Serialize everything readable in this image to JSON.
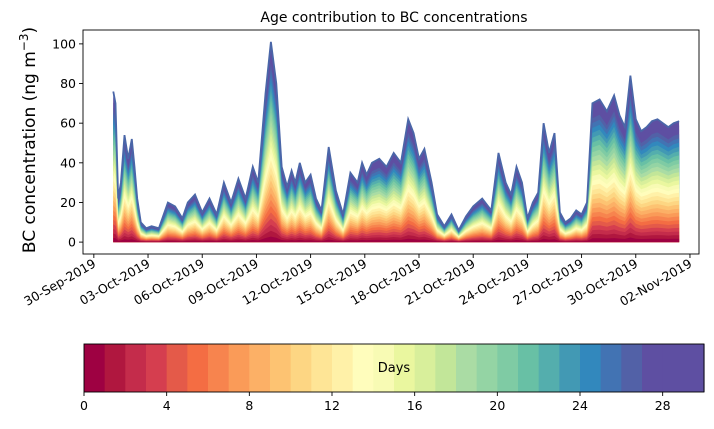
{
  "chart_data": {
    "type": "area",
    "stacked": true,
    "title": "Age contribution to BC concentrations",
    "ylabel_main": "BC concentration (ng m",
    "ylabel_sup": "−3",
    "ylabel_close": ")",
    "xlabel": "",
    "ylim": [
      -6,
      107
    ],
    "xlim": [
      -0.6,
      33.5
    ],
    "x_origin_date": "30-Sep-2019",
    "y_ticks": [
      0,
      20,
      40,
      60,
      80,
      100
    ],
    "x_ticks": [
      {
        "day": 0,
        "label": "30-Sep-2019"
      },
      {
        "day": 3,
        "label": "03-Oct-2019"
      },
      {
        "day": 6,
        "label": "06-Oct-2019"
      },
      {
        "day": 9,
        "label": "09-Oct-2019"
      },
      {
        "day": 12,
        "label": "12-Oct-2019"
      },
      {
        "day": 15,
        "label": "15-Oct-2019"
      },
      {
        "day": 18,
        "label": "18-Oct-2019"
      },
      {
        "day": 21,
        "label": "21-Oct-2019"
      },
      {
        "day": 24,
        "label": "24-Oct-2019"
      },
      {
        "day": 27,
        "label": "27-Oct-2019"
      },
      {
        "day": 30,
        "label": "30-Oct-2019"
      },
      {
        "day": 33,
        "label": "02-Nov-2019"
      }
    ],
    "time_days": [
      1.08,
      1.2,
      1.35,
      1.5,
      1.7,
      1.9,
      2.1,
      2.25,
      2.4,
      2.6,
      2.9,
      3.2,
      3.6,
      4.1,
      4.5,
      4.9,
      5.2,
      5.6,
      6.0,
      6.4,
      6.8,
      7.2,
      7.6,
      8.0,
      8.4,
      8.8,
      9.1,
      9.5,
      9.8,
      10.1,
      10.4,
      10.7,
      10.95,
      11.15,
      11.4,
      11.7,
      12.0,
      12.3,
      12.6,
      13.0,
      13.4,
      13.8,
      14.2,
      14.6,
      14.85,
      15.1,
      15.4,
      15.8,
      16.2,
      16.6,
      17.0,
      17.4,
      17.7,
      18.0,
      18.3,
      18.7,
      19.0,
      19.4,
      19.8,
      20.2,
      20.6,
      21.0,
      21.5,
      22.0,
      22.4,
      22.8,
      23.1,
      23.4,
      23.7,
      24.0,
      24.3,
      24.6,
      24.9,
      25.2,
      25.5,
      25.8,
      26.1,
      26.4,
      26.7,
      27.0,
      27.3,
      27.6,
      28.0,
      28.4,
      28.8,
      29.1,
      29.4,
      29.7,
      30.0,
      30.3,
      30.6,
      30.9,
      31.2,
      31.5,
      31.8,
      32.1,
      32.4
    ],
    "total_bc": [
      76,
      70,
      22,
      30,
      54,
      42,
      52,
      38,
      22,
      10,
      7,
      8,
      7,
      20,
      18,
      12,
      20,
      24,
      15,
      22,
      14,
      30,
      20,
      32,
      22,
      38,
      30,
      75,
      101,
      80,
      38,
      28,
      36,
      30,
      40,
      30,
      34,
      22,
      16,
      48,
      26,
      14,
      35,
      30,
      40,
      34,
      40,
      42,
      38,
      45,
      40,
      62,
      55,
      42,
      47,
      30,
      14,
      8,
      14,
      6,
      13,
      18,
      22,
      16,
      45,
      30,
      24,
      38,
      30,
      12,
      20,
      25,
      60,
      45,
      55,
      15,
      10,
      12,
      16,
      14,
      20,
      70,
      72,
      66,
      74,
      64,
      58,
      84,
      62,
      56,
      58,
      61,
      62,
      60,
      58,
      60,
      61
    ],
    "days_bins": 30,
    "colorbar": {
      "label": "Days",
      "ticks": [
        0,
        4,
        8,
        12,
        16,
        20,
        24,
        28
      ],
      "min": 0,
      "max": 30,
      "colors": [
        "#9e0142",
        "#b0173f",
        "#c42c4b",
        "#d53e4f",
        "#e45a49",
        "#f46d43",
        "#f7844e",
        "#fa9b58",
        "#fcb066",
        "#fdc372",
        "#fdd683",
        "#fee596",
        "#fff1a8",
        "#fffdbc",
        "#f8fbb4",
        "#eaf79f",
        "#d8ef9b",
        "#c2e699",
        "#aadca4",
        "#94d4a4",
        "#7fcba4",
        "#68c0a5",
        "#54aead",
        "#4299b4",
        "#3288bd",
        "#4273b3",
        "#5261a7",
        "#5e4fa2",
        "#5e4fa2",
        "#5e4fa2"
      ]
    }
  }
}
